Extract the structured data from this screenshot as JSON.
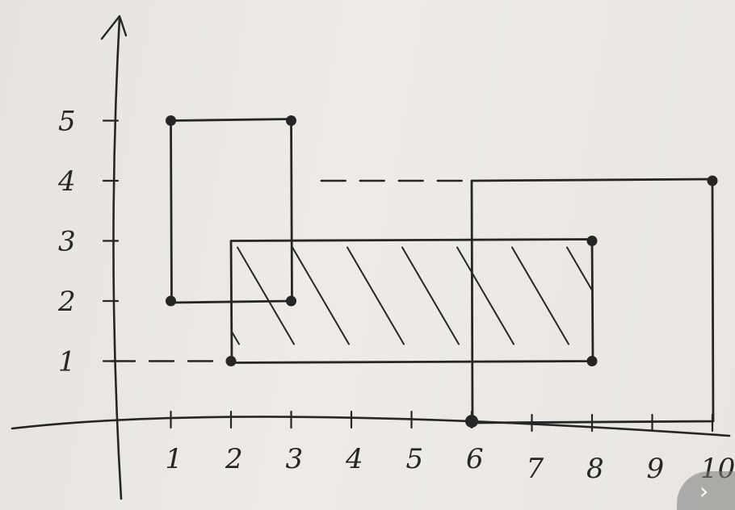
{
  "diagram": {
    "x_tick_labels": [
      "1",
      "2",
      "3",
      "4",
      "5",
      "6",
      "7",
      "8",
      "9",
      "10"
    ],
    "y_tick_labels": [
      "1",
      "2",
      "3",
      "4",
      "5"
    ],
    "rectangles": [
      {
        "x1": 1,
        "y1": 2,
        "x2": 3,
        "y2": 5,
        "hatched": false
      },
      {
        "x1": 2,
        "y1": 1,
        "x2": 8,
        "y2": 3,
        "hatched": true
      },
      {
        "x1": 6,
        "y1": 0,
        "x2": 10,
        "y2": 4,
        "hatched": false
      }
    ],
    "corner_points": [
      {
        "x": 1,
        "y": 5
      },
      {
        "x": 3,
        "y": 5
      },
      {
        "x": 1,
        "y": 2
      },
      {
        "x": 3,
        "y": 2
      },
      {
        "x": 2,
        "y": 1
      },
      {
        "x": 8,
        "y": 3
      },
      {
        "x": 8,
        "y": 1
      },
      {
        "x": 6,
        "y": 0
      },
      {
        "x": 10,
        "y": 4
      }
    ],
    "dashed_guides": [
      {
        "from": {
          "x": 0,
          "y": 1
        },
        "to": {
          "x": 2,
          "y": 1
        }
      },
      {
        "from": {
          "x": 3.5,
          "y": 4
        },
        "to": {
          "x": 6,
          "y": 4
        }
      }
    ],
    "ink_color": "#262626",
    "paper_color": "#eae7e2"
  },
  "ui": {
    "next_icon": "chevron-right-icon",
    "next_glyph": "›"
  }
}
